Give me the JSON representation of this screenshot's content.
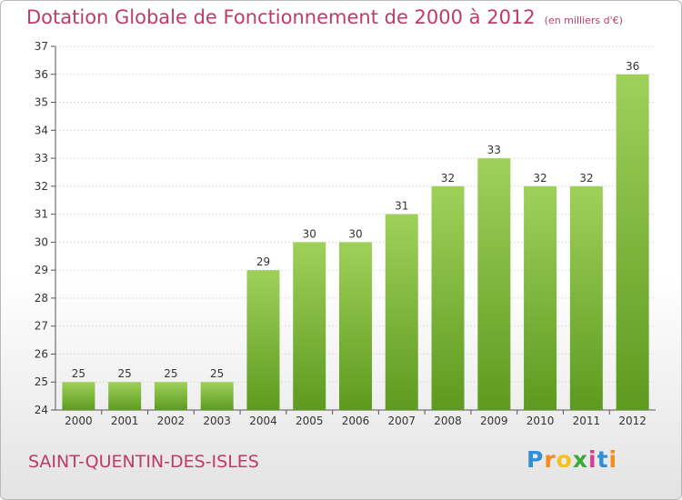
{
  "chart_data": {
    "type": "bar",
    "title": "Dotation Globale de Fonctionnement de 2000 à 2012",
    "unit": "(en milliers d'€)",
    "xlabel": "",
    "ylabel": "",
    "categories": [
      "2000",
      "2001",
      "2002",
      "2003",
      "2004",
      "2005",
      "2006",
      "2007",
      "2008",
      "2009",
      "2010",
      "2011",
      "2012"
    ],
    "values": [
      25,
      25,
      25,
      25,
      29,
      30,
      30,
      31,
      32,
      33,
      32,
      32,
      36
    ],
    "ylim": [
      24,
      37
    ],
    "yticks": [
      24,
      25,
      26,
      27,
      28,
      29,
      30,
      31,
      32,
      33,
      34,
      35,
      36,
      37
    ],
    "grid": true,
    "bar_color_top": "#9fd15a",
    "bar_color_bottom": "#5e9a1f"
  },
  "commune": "SAINT-QUENTIN-DES-ISLES",
  "logo": {
    "letters": [
      "P",
      "r",
      "o",
      "x",
      "i",
      "t",
      "i"
    ],
    "colors": [
      "#2f8fd8",
      "#f28c1c",
      "#f5c21a",
      "#3aa83a",
      "#d63c8f",
      "#2f8fd8",
      "#f28c1c"
    ]
  }
}
